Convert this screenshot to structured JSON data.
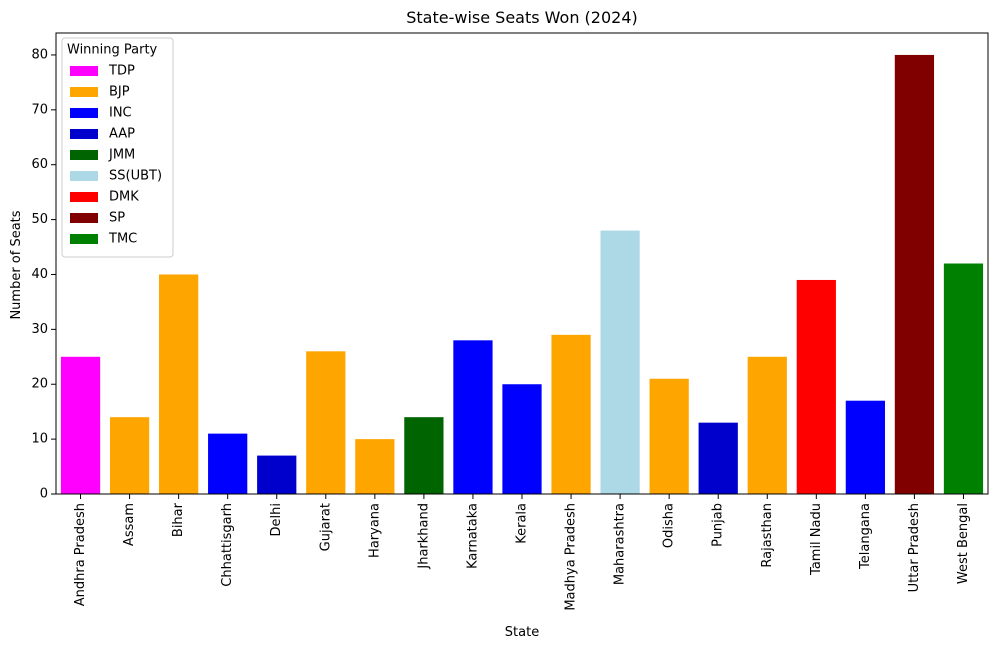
{
  "chart_data": {
    "type": "bar",
    "title": "State-wise Seats Won (2024)",
    "xlabel": "State",
    "ylabel": "Number of Seats",
    "ylim": [
      0,
      84
    ],
    "yticks": [
      0,
      10,
      20,
      30,
      40,
      50,
      60,
      70,
      80
    ],
    "grid": false,
    "legend": {
      "title": "Winning Party",
      "placement": "top-left",
      "entries": [
        {
          "party": "TDP",
          "color": "#ff00ff"
        },
        {
          "party": "BJP",
          "color": "#ffa500"
        },
        {
          "party": "INC",
          "color": "#0000ff"
        },
        {
          "party": "AAP",
          "color": "#0000cd"
        },
        {
          "party": "JMM",
          "color": "#006400"
        },
        {
          "party": "SS(UBT)",
          "color": "#add8e6"
        },
        {
          "party": "DMK",
          "color": "#ff0000"
        },
        {
          "party": "SP",
          "color": "#800000"
        },
        {
          "party": "TMC",
          "color": "#008000"
        }
      ]
    },
    "categories": [
      "Andhra Pradesh",
      "Assam",
      "Bihar",
      "Chhattisgarh",
      "Delhi",
      "Gujarat",
      "Haryana",
      "Jharkhand",
      "Karnataka",
      "Kerala",
      "Madhya Pradesh",
      "Maharashtra",
      "Odisha",
      "Punjab",
      "Rajasthan",
      "Tamil Nadu",
      "Telangana",
      "Uttar Pradesh",
      "West Bengal"
    ],
    "values": [
      25,
      14,
      40,
      11,
      7,
      26,
      10,
      14,
      28,
      20,
      29,
      48,
      21,
      13,
      25,
      39,
      17,
      80,
      42
    ],
    "parties": [
      "TDP",
      "BJP",
      "BJP",
      "INC",
      "AAP",
      "BJP",
      "BJP",
      "JMM",
      "INC",
      "INC",
      "BJP",
      "SS(UBT)",
      "BJP",
      "AAP",
      "BJP",
      "DMK",
      "INC",
      "SP",
      "TMC"
    ]
  }
}
